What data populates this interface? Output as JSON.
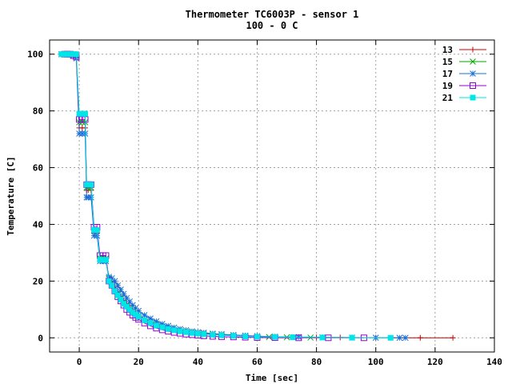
{
  "chart_data": {
    "type": "line",
    "title": "Thermometer TC6003P - sensor 1",
    "subtitle": "100 - 0 C",
    "xlabel": "Time [sec]",
    "ylabel": "Temperature [C]",
    "xlim": [
      -10,
      140
    ],
    "ylim": [
      -5,
      105
    ],
    "xticks": [
      0,
      20,
      40,
      60,
      80,
      100,
      120,
      140
    ],
    "yticks": [
      0,
      20,
      40,
      60,
      80,
      100
    ],
    "grid": true,
    "legend_position": "top-right",
    "series": [
      {
        "name": "13",
        "color": "#cc0000",
        "marker": "plus",
        "x": [
          -6,
          -5,
          -4,
          -3,
          -2,
          -1,
          0,
          1,
          2,
          2.5,
          3,
          4,
          5,
          6,
          7,
          8,
          9,
          10,
          11,
          12,
          13,
          14,
          15,
          16,
          17,
          18,
          19,
          20,
          22,
          24,
          26,
          28,
          30,
          32,
          34,
          36,
          38,
          40,
          42,
          45,
          48,
          52,
          56,
          60,
          66,
          72,
          80,
          88,
          100,
          115,
          126
        ],
        "y": [
          100,
          100,
          100,
          100,
          99.5,
          99,
          74,
          74,
          74,
          52,
          52,
          52,
          37,
          37,
          27,
          27,
          27,
          21,
          19.5,
          18,
          16,
          14.5,
          13,
          12,
          11,
          10,
          9,
          8,
          6.8,
          5.8,
          4.9,
          4.1,
          3.5,
          3.0,
          2.6,
          2.3,
          2.0,
          1.8,
          1.6,
          1.3,
          1.1,
          0.9,
          0.7,
          0.5,
          0.35,
          0.25,
          0.15,
          0.1,
          0.05,
          0,
          0
        ]
      },
      {
        "name": "15",
        "color": "#00aa00",
        "marker": "cross",
        "x": [
          -6,
          -5,
          -4,
          -3,
          -2,
          -1,
          0,
          1,
          2,
          2.5,
          3,
          4,
          5,
          6,
          7,
          8,
          9,
          10,
          11,
          12,
          13,
          14,
          15,
          16,
          17,
          18,
          19,
          20,
          22,
          24,
          26,
          28,
          30,
          32,
          34,
          36,
          38,
          40,
          42,
          45,
          48,
          52,
          56,
          60,
          64,
          70,
          78
        ],
        "y": [
          100,
          100,
          100,
          100,
          100,
          99.5,
          76,
          76,
          76,
          53,
          53,
          53,
          38,
          38,
          28,
          28,
          28,
          21,
          19.5,
          17.5,
          15.5,
          14,
          12.5,
          11.5,
          10.5,
          9.5,
          8.5,
          7.8,
          6.5,
          5.5,
          4.6,
          3.9,
          3.3,
          2.8,
          2.4,
          2.1,
          1.8,
          1.6,
          1.4,
          1.2,
          1.0,
          0.8,
          0.6,
          0.4,
          0.3,
          0.2,
          0.1
        ]
      },
      {
        "name": "17",
        "color": "#1a6fd6",
        "marker": "star",
        "x": [
          -6,
          -5,
          -4,
          -3,
          -2,
          -1,
          0,
          1,
          2,
          2.5,
          3,
          4,
          5,
          6,
          7,
          8,
          9,
          10,
          11,
          12,
          13,
          14,
          15,
          16,
          17,
          18,
          19,
          20,
          22,
          24,
          26,
          28,
          30,
          32,
          34,
          36,
          38,
          40,
          42,
          45,
          48,
          52,
          56,
          60,
          66,
          74,
          82,
          92,
          100,
          108,
          110
        ],
        "y": [
          100,
          100,
          100,
          100,
          99.5,
          98.5,
          72,
          72,
          72,
          49.5,
          49.5,
          49.5,
          36,
          36,
          27,
          27,
          27,
          21.5,
          21,
          20,
          18.5,
          17,
          15.5,
          14,
          12.8,
          11.5,
          10.5,
          9.5,
          8.0,
          6.8,
          5.8,
          4.9,
          4.2,
          3.6,
          3.1,
          2.7,
          2.3,
          2.0,
          1.8,
          1.5,
          1.3,
          1.0,
          0.8,
          0.6,
          0.4,
          0.3,
          0.2,
          0.1,
          0.05,
          0,
          0
        ]
      },
      {
        "name": "19",
        "color": "#9400d3",
        "marker": "square",
        "x": [
          -5,
          -4,
          -3,
          -2,
          -1,
          0,
          1,
          2,
          2.5,
          3,
          4,
          5,
          6,
          7,
          8,
          9,
          10,
          11,
          12,
          13,
          14,
          15,
          16,
          17,
          18,
          19,
          20,
          22,
          24,
          26,
          28,
          30,
          32,
          34,
          36,
          38,
          40,
          42,
          45,
          48,
          52,
          56,
          60,
          66,
          74,
          84,
          96
        ],
        "y": [
          100,
          100,
          100,
          99.5,
          99,
          77,
          77,
          77,
          54,
          54,
          54,
          39,
          39,
          29,
          29,
          29,
          20,
          18.5,
          16.5,
          14.5,
          13,
          11.5,
          10,
          9,
          8,
          7.2,
          6.5,
          5.2,
          4.2,
          3.4,
          2.8,
          2.3,
          1.9,
          1.6,
          1.3,
          1.1,
          0.9,
          0.7,
          0.5,
          0.4,
          0.3,
          0.2,
          0.1,
          0.05,
          0,
          0,
          0
        ]
      },
      {
        "name": "21",
        "color": "#00e5e5",
        "marker": "filled-square",
        "x": [
          -6,
          -5,
          -4,
          -3,
          -2,
          -1,
          0,
          1,
          2,
          2.5,
          3,
          4,
          5,
          6,
          7,
          8,
          9,
          10,
          11,
          12,
          13,
          14,
          15,
          16,
          17,
          18,
          19,
          20,
          22,
          24,
          26,
          28,
          30,
          32,
          34,
          36,
          38,
          40,
          42,
          45,
          48,
          52,
          56,
          60,
          66,
          72,
          82,
          92,
          105
        ],
        "y": [
          100,
          100,
          100,
          100,
          100,
          100,
          79,
          79,
          79,
          54,
          54,
          54,
          38,
          38,
          27.5,
          27.5,
          27.5,
          20,
          18.5,
          16.5,
          15,
          13.5,
          12,
          11,
          10,
          9,
          8.2,
          7.5,
          6.2,
          5.2,
          4.3,
          3.7,
          3.1,
          2.7,
          2.3,
          2.0,
          1.7,
          1.5,
          1.3,
          1.1,
          0.9,
          0.7,
          0.5,
          0.4,
          0.3,
          0.2,
          0.1,
          0.05,
          0
        ]
      }
    ]
  }
}
